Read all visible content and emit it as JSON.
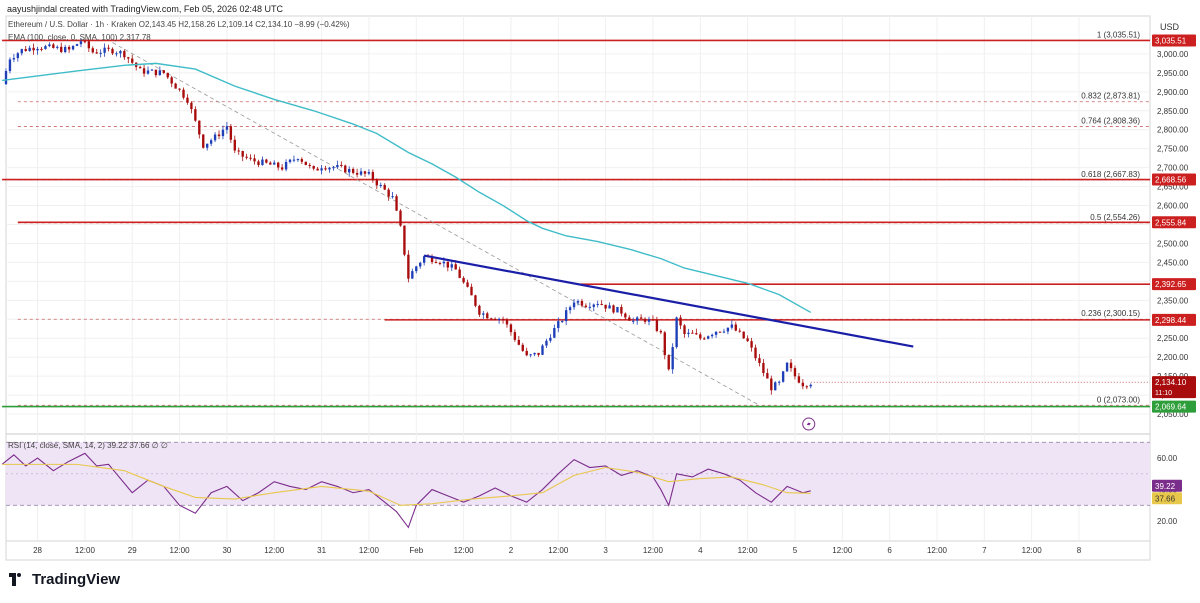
{
  "header": {
    "credit": "aayushjindal created with TradingView.com, Feb 05, 2026 02:48 UTC",
    "ohlc": "Ethereum / U.S. Dollar · 1h · Kraken  O2,143.45  H2,158.26  L2,109.14  C2,134.10  −8.99 (−0.42%)",
    "ema": "EMA (100, close, 0, SMA, 100)  2,317.78",
    "rsi": "RSI (14, close, SMA, 14, 2)  39.22  37.66  ∅  ∅"
  },
  "footer": {
    "brand": "TradingView"
  },
  "colors": {
    "bullish": "#1e3fb8",
    "bearish": "#a80c0c",
    "ema": "#3fbcc8",
    "trendline": "#1b1fa8",
    "level": "#cc2020",
    "support": "#2e9e3a",
    "rsi_line": "#7b2d8b",
    "rsi_sma": "#e8c84a",
    "rsi_band": "#efe3f6"
  },
  "icons": {
    "replay": "lightning-replay-icon"
  },
  "chart_data": [
    {
      "type": "candlestick",
      "title": "Ethereum / U.S. Dollar · 1h · Kraken",
      "currency": "USD",
      "ylim": [
        2000,
        3100
      ],
      "y_ticks": [
        2050,
        2100,
        2150,
        2200,
        2250,
        2300,
        2350,
        2400,
        2450,
        2500,
        2550,
        2600,
        2650,
        2700,
        2750,
        2800,
        2850,
        2900,
        2950,
        3000
      ],
      "y_tick_labels": [
        "2,050.00",
        "2,100.00",
        "2,150.00",
        "2,200.00",
        "2,250.00",
        "2,300.00",
        "2,350.00",
        "2,400.00",
        "2,450.00",
        "2,500.00",
        "2,550.00",
        "2,600.00",
        "2,650.00",
        "2,700.00",
        "2,750.00",
        "2,800.00",
        "2,850.00",
        "2,900.00",
        "2,950.00",
        "3,000.00"
      ],
      "x_ticks": [
        {
          "label": "28",
          "hour": 0
        },
        {
          "label": "12:00",
          "hour": 12
        },
        {
          "label": "29",
          "hour": 24
        },
        {
          "label": "12:00",
          "hour": 36
        },
        {
          "label": "30",
          "hour": 48
        },
        {
          "label": "12:00",
          "hour": 60
        },
        {
          "label": "31",
          "hour": 72
        },
        {
          "label": "12:00",
          "hour": 84
        },
        {
          "label": "Feb",
          "hour": 96
        },
        {
          "label": "12:00",
          "hour": 108
        },
        {
          "label": "2",
          "hour": 120
        },
        {
          "label": "12:00",
          "hour": 132
        },
        {
          "label": "3",
          "hour": 144
        },
        {
          "label": "12:00",
          "hour": 156
        },
        {
          "label": "4",
          "hour": 168
        },
        {
          "label": "12:00",
          "hour": 180
        },
        {
          "label": "5",
          "hour": 192
        },
        {
          "label": "12:00",
          "hour": 204
        },
        {
          "label": "6",
          "hour": 216
        },
        {
          "label": "12:00",
          "hour": 228
        },
        {
          "label": "7",
          "hour": 240
        },
        {
          "label": "12:00",
          "hour": 252
        },
        {
          "label": "8",
          "hour": 264
        }
      ],
      "x_range_hours": [
        -8,
        282
      ],
      "close_path": [
        {
          "h": -9,
          "p": 2920
        },
        {
          "h": -7,
          "p": 2990
        },
        {
          "h": -4,
          "p": 3010
        },
        {
          "h": 0,
          "p": 3020
        },
        {
          "h": 4,
          "p": 3015
        },
        {
          "h": 8,
          "p": 3010
        },
        {
          "h": 11,
          "p": 3035
        },
        {
          "h": 14,
          "p": 3005
        },
        {
          "h": 19,
          "p": 3010
        },
        {
          "h": 22,
          "p": 3000
        },
        {
          "h": 26,
          "p": 2955
        },
        {
          "h": 32,
          "p": 2950
        },
        {
          "h": 38,
          "p": 2880
        },
        {
          "h": 40,
          "p": 2820
        },
        {
          "h": 42,
          "p": 2760
        },
        {
          "h": 45,
          "p": 2780
        },
        {
          "h": 48,
          "p": 2810
        },
        {
          "h": 50,
          "p": 2740
        },
        {
          "h": 54,
          "p": 2720
        },
        {
          "h": 58,
          "p": 2710
        },
        {
          "h": 62,
          "p": 2700
        },
        {
          "h": 66,
          "p": 2730
        },
        {
          "h": 70,
          "p": 2690
        },
        {
          "h": 72,
          "p": 2705
        },
        {
          "h": 76,
          "p": 2700
        },
        {
          "h": 80,
          "p": 2690
        },
        {
          "h": 84,
          "p": 2680
        },
        {
          "h": 88,
          "p": 2640
        },
        {
          "h": 90,
          "p": 2620
        },
        {
          "h": 92,
          "p": 2540
        },
        {
          "h": 94,
          "p": 2410
        },
        {
          "h": 96,
          "p": 2440
        },
        {
          "h": 98,
          "p": 2465
        },
        {
          "h": 102,
          "p": 2455
        },
        {
          "h": 106,
          "p": 2430
        },
        {
          "h": 110,
          "p": 2360
        },
        {
          "h": 112,
          "p": 2320
        },
        {
          "h": 114,
          "p": 2310
        },
        {
          "h": 118,
          "p": 2300
        },
        {
          "h": 121,
          "p": 2250
        },
        {
          "h": 124,
          "p": 2200
        },
        {
          "h": 127,
          "p": 2210
        },
        {
          "h": 130,
          "p": 2260
        },
        {
          "h": 133,
          "p": 2300
        },
        {
          "h": 136,
          "p": 2350
        },
        {
          "h": 139,
          "p": 2340
        },
        {
          "h": 142,
          "p": 2345
        },
        {
          "h": 145,
          "p": 2330
        },
        {
          "h": 148,
          "p": 2320
        },
        {
          "h": 151,
          "p": 2295
        },
        {
          "h": 154,
          "p": 2300
        },
        {
          "h": 156,
          "p": 2290
        },
        {
          "h": 158,
          "p": 2260
        },
        {
          "h": 160,
          "p": 2160
        },
        {
          "h": 162,
          "p": 2300
        },
        {
          "h": 164,
          "p": 2260
        },
        {
          "h": 166,
          "p": 2260
        },
        {
          "h": 168,
          "p": 2250
        },
        {
          "h": 172,
          "p": 2270
        },
        {
          "h": 176,
          "p": 2280
        },
        {
          "h": 180,
          "p": 2240
        },
        {
          "h": 182,
          "p": 2200
        },
        {
          "h": 184,
          "p": 2160
        },
        {
          "h": 186,
          "p": 2120
        },
        {
          "h": 188,
          "p": 2130
        },
        {
          "h": 190,
          "p": 2180
        },
        {
          "h": 192,
          "p": 2150
        },
        {
          "h": 194,
          "p": 2130
        },
        {
          "h": 196,
          "p": 2134
        }
      ],
      "ema_100": [
        {
          "h": -9,
          "p": 2930
        },
        {
          "h": 10,
          "p": 2955
        },
        {
          "h": 22,
          "p": 2970
        },
        {
          "h": 30,
          "p": 2975
        },
        {
          "h": 40,
          "p": 2960
        },
        {
          "h": 50,
          "p": 2915
        },
        {
          "h": 60,
          "p": 2880
        },
        {
          "h": 70,
          "p": 2850
        },
        {
          "h": 80,
          "p": 2815
        },
        {
          "h": 86,
          "p": 2790
        },
        {
          "h": 94,
          "p": 2740
        },
        {
          "h": 100,
          "p": 2710
        },
        {
          "h": 106,
          "p": 2675
        },
        {
          "h": 112,
          "p": 2635
        },
        {
          "h": 118,
          "p": 2600
        },
        {
          "h": 124,
          "p": 2560
        },
        {
          "h": 128,
          "p": 2540
        },
        {
          "h": 134,
          "p": 2520
        },
        {
          "h": 142,
          "p": 2505
        },
        {
          "h": 150,
          "p": 2485
        },
        {
          "h": 158,
          "p": 2460
        },
        {
          "h": 164,
          "p": 2435
        },
        {
          "h": 172,
          "p": 2415
        },
        {
          "h": 180,
          "p": 2395
        },
        {
          "h": 188,
          "p": 2365
        },
        {
          "h": 196,
          "p": 2318
        }
      ],
      "horizontal_levels": [
        {
          "label": "3,035.51",
          "value": 3035.51,
          "h_start": -9
        },
        {
          "label": "2,668.56",
          "value": 2668.56,
          "h_start": -9
        },
        {
          "label": "2,555.84",
          "value": 2555.84,
          "h_start": -5
        },
        {
          "label": "2,392.65",
          "value": 2392.65,
          "h_start": 137
        },
        {
          "label": "2,298.44",
          "value": 2298.44,
          "h_start": 88
        },
        {
          "label": "2,069.64",
          "value": 2069.64,
          "h_start": -9,
          "kind": "support"
        }
      ],
      "fib_levels": [
        {
          "label": "1 (3,035.51)",
          "value": 3035.51
        },
        {
          "label": "0.832 (2,873.81)",
          "value": 2873.81
        },
        {
          "label": "0.764 (2,808.36)",
          "value": 2808.36
        },
        {
          "label": "0.618 (2,667.83)",
          "value": 2667.83
        },
        {
          "label": "0.5 (2,554.26)",
          "value": 2554.26
        },
        {
          "label": "0.236 (2,300.15)",
          "value": 2300.15
        },
        {
          "label": "0 (2,073.00)",
          "value": 2073.0
        }
      ],
      "fib_range_hours": [
        -5,
        282
      ],
      "trendline": [
        {
          "h": 98,
          "p": 2468
        },
        {
          "h": 222,
          "p": 2228
        }
      ],
      "dashed_diagonal": [
        {
          "h": 19,
          "p": 3030
        },
        {
          "h": 183,
          "p": 2073
        }
      ],
      "last_price": {
        "label": "2,134.10",
        "value": 2134.1,
        "countdown": "11:10"
      }
    },
    {
      "type": "line",
      "title": "RSI (14, close, SMA, 14, 2)",
      "ylim": [
        8,
        74
      ],
      "band": [
        30,
        70
      ],
      "y_ticks": [
        20,
        40,
        60
      ],
      "y_tick_labels": [
        "20.00",
        "40.00",
        "60.00"
      ],
      "current": [
        39.22,
        37.66
      ],
      "series": [
        {
          "name": "RSI",
          "points": [
            {
              "h": -9,
              "v": 56
            },
            {
              "h": -6,
              "v": 62
            },
            {
              "h": -3,
              "v": 55
            },
            {
              "h": 0,
              "v": 60
            },
            {
              "h": 4,
              "v": 52
            },
            {
              "h": 8,
              "v": 58
            },
            {
              "h": 12,
              "v": 63
            },
            {
              "h": 15,
              "v": 55
            },
            {
              "h": 18,
              "v": 56
            },
            {
              "h": 20,
              "v": 50
            },
            {
              "h": 24,
              "v": 38
            },
            {
              "h": 28,
              "v": 46
            },
            {
              "h": 32,
              "v": 42
            },
            {
              "h": 36,
              "v": 30
            },
            {
              "h": 40,
              "v": 25
            },
            {
              "h": 44,
              "v": 38
            },
            {
              "h": 48,
              "v": 42
            },
            {
              "h": 52,
              "v": 33
            },
            {
              "h": 56,
              "v": 38
            },
            {
              "h": 60,
              "v": 45
            },
            {
              "h": 64,
              "v": 42
            },
            {
              "h": 68,
              "v": 40
            },
            {
              "h": 72,
              "v": 45
            },
            {
              "h": 76,
              "v": 42
            },
            {
              "h": 80,
              "v": 38
            },
            {
              "h": 84,
              "v": 40
            },
            {
              "h": 88,
              "v": 32
            },
            {
              "h": 91,
              "v": 26
            },
            {
              "h": 94,
              "v": 16
            },
            {
              "h": 96,
              "v": 30
            },
            {
              "h": 100,
              "v": 40
            },
            {
              "h": 104,
              "v": 36
            },
            {
              "h": 108,
              "v": 32
            },
            {
              "h": 112,
              "v": 36
            },
            {
              "h": 116,
              "v": 41
            },
            {
              "h": 120,
              "v": 36
            },
            {
              "h": 124,
              "v": 32
            },
            {
              "h": 128,
              "v": 40
            },
            {
              "h": 132,
              "v": 50
            },
            {
              "h": 136,
              "v": 59
            },
            {
              "h": 140,
              "v": 54
            },
            {
              "h": 144,
              "v": 55
            },
            {
              "h": 148,
              "v": 49
            },
            {
              "h": 152,
              "v": 52
            },
            {
              "h": 156,
              "v": 48
            },
            {
              "h": 158,
              "v": 40
            },
            {
              "h": 160,
              "v": 30
            },
            {
              "h": 162,
              "v": 50
            },
            {
              "h": 166,
              "v": 48
            },
            {
              "h": 170,
              "v": 53
            },
            {
              "h": 174,
              "v": 50
            },
            {
              "h": 178,
              "v": 46
            },
            {
              "h": 182,
              "v": 38
            },
            {
              "h": 186,
              "v": 32
            },
            {
              "h": 190,
              "v": 42
            },
            {
              "h": 194,
              "v": 38
            },
            {
              "h": 196,
              "v": 39.22
            }
          ]
        },
        {
          "name": "RSI-based MA",
          "points": [
            {
              "h": -9,
              "v": 56
            },
            {
              "h": 10,
              "v": 56
            },
            {
              "h": 22,
              "v": 52
            },
            {
              "h": 32,
              "v": 42
            },
            {
              "h": 40,
              "v": 35
            },
            {
              "h": 50,
              "v": 34
            },
            {
              "h": 60,
              "v": 38
            },
            {
              "h": 72,
              "v": 42
            },
            {
              "h": 84,
              "v": 39
            },
            {
              "h": 92,
              "v": 30
            },
            {
              "h": 100,
              "v": 31
            },
            {
              "h": 110,
              "v": 34
            },
            {
              "h": 120,
              "v": 36
            },
            {
              "h": 128,
              "v": 38
            },
            {
              "h": 136,
              "v": 49
            },
            {
              "h": 144,
              "v": 54
            },
            {
              "h": 152,
              "v": 51
            },
            {
              "h": 160,
              "v": 45
            },
            {
              "h": 168,
              "v": 47
            },
            {
              "h": 176,
              "v": 48
            },
            {
              "h": 184,
              "v": 43
            },
            {
              "h": 190,
              "v": 38
            },
            {
              "h": 196,
              "v": 37.66
            }
          ]
        }
      ]
    }
  ]
}
